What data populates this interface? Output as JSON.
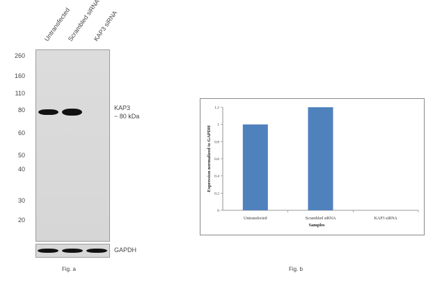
{
  "blot": {
    "lanes": [
      "Untransfected",
      "Scrambled siRNA",
      "KAP3 siRNA"
    ],
    "markers": [
      "260",
      "160",
      "110",
      "80",
      "60",
      "50",
      "40",
      "30",
      "20"
    ],
    "band_label_line1": "KAP3",
    "band_label_line2": "~ 80 kDa",
    "loading_control": "GAPDH",
    "caption": "Fig. a"
  },
  "chart_caption": "Fig. b",
  "chart_data": {
    "type": "bar",
    "categories": [
      "Untransfected",
      "Scrambled siRNA",
      "KAP3 siRNA"
    ],
    "values": [
      1.0,
      1.2,
      0
    ],
    "xlabel": "Samples",
    "ylabel": "Expression normalized to GAPDH",
    "ylim": [
      0,
      1.2
    ],
    "yticks": [
      "0",
      "0.2",
      "0.4",
      "0.6",
      "0.8",
      "1",
      "1.2"
    ],
    "grid": false,
    "bar_color": "#4f81bd"
  }
}
